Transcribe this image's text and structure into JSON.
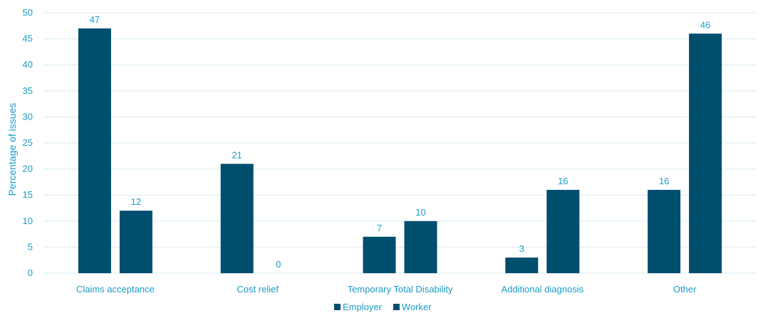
{
  "chart_data": {
    "type": "bar",
    "title": "",
    "xlabel": "",
    "ylabel": "Percentage of issues",
    "ylim": [
      0,
      50
    ],
    "yticks": [
      0,
      5,
      10,
      15,
      20,
      25,
      30,
      35,
      40,
      45,
      50
    ],
    "grid": true,
    "legend_position": "bottom",
    "categories": [
      "Claims acceptance",
      "Cost relief",
      "Temporary Total Disability",
      "Additional diagnosis",
      "Other"
    ],
    "series": [
      {
        "name": "Employer",
        "values": [
          47,
          21,
          7,
          3,
          16
        ],
        "color": "#004e6e"
      },
      {
        "name": "Worker",
        "values": [
          12,
          0,
          10,
          16,
          46
        ],
        "color": "#004e6e"
      }
    ]
  },
  "colors": {
    "axis_text": "#1a9bc7",
    "grid": "#d6e9f1"
  }
}
